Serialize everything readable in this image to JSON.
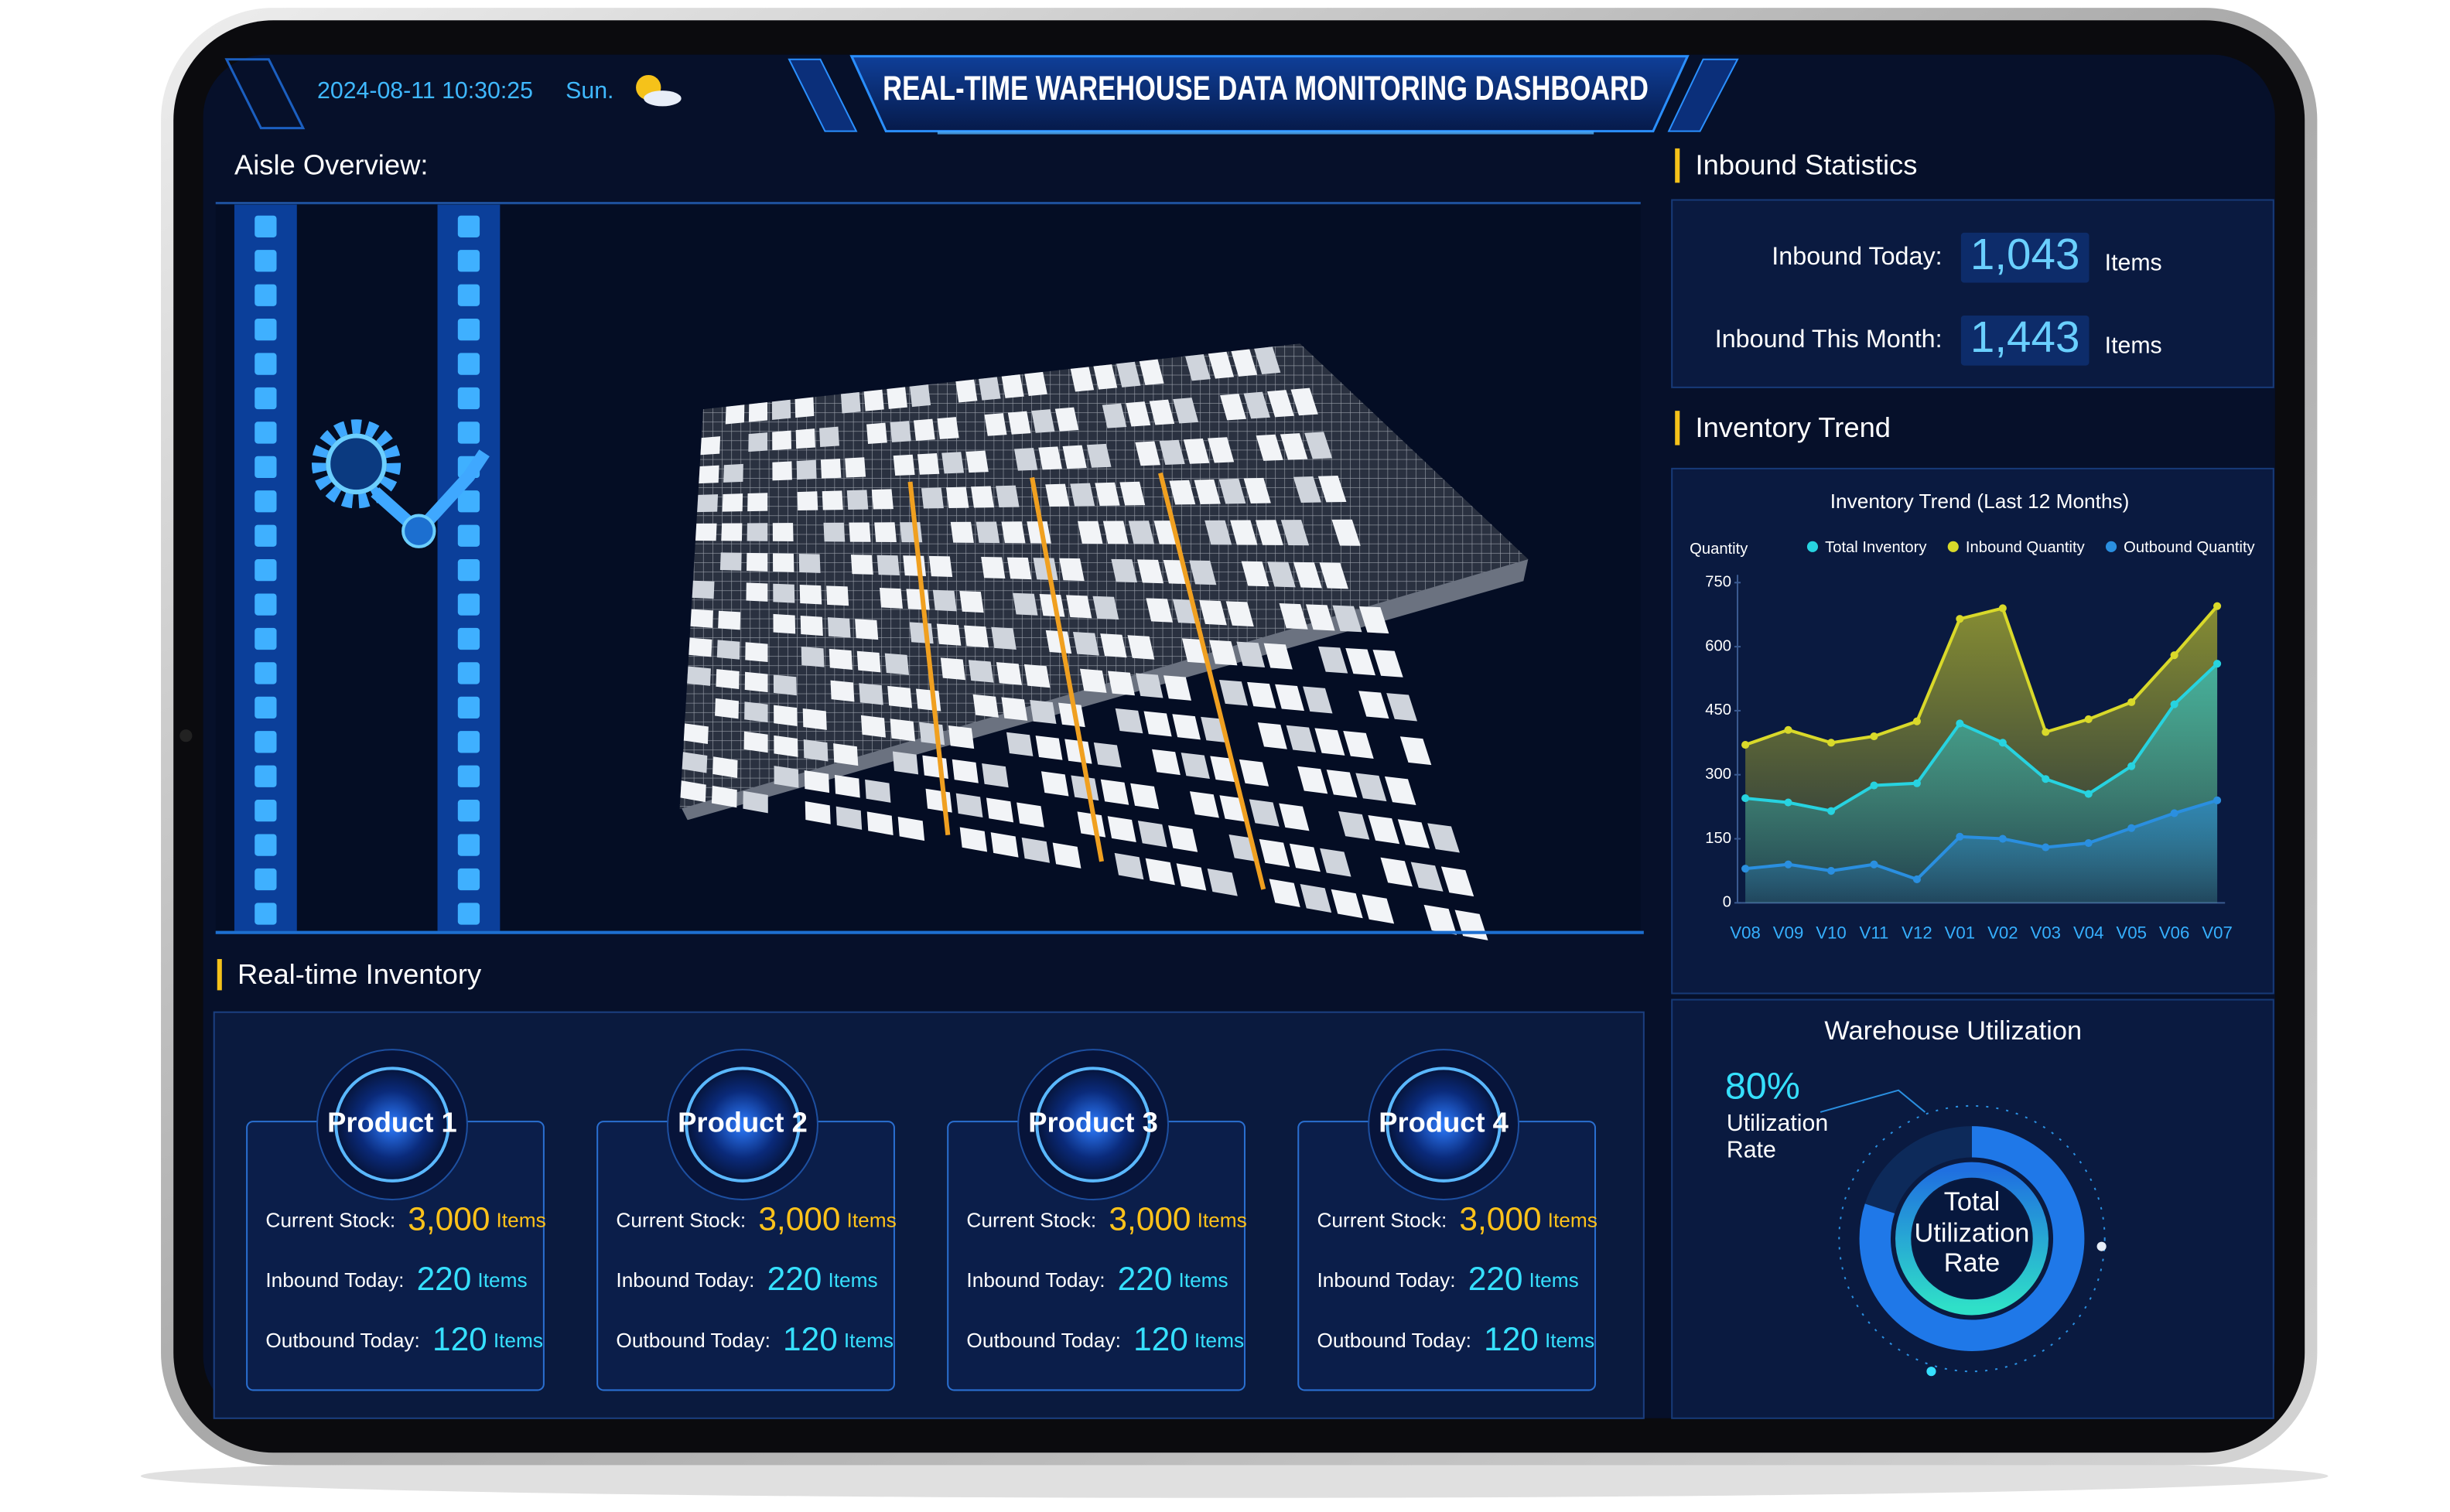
{
  "header": {
    "datetime": "2024-08-11 10:30:25",
    "weekday": "Sun.",
    "title": "REAL-TIME WAREHOUSE DATA MONITORING DASHBOARD"
  },
  "aisle": {
    "title": "Aisle Overview:"
  },
  "inbound": {
    "title": "Inbound Statistics",
    "rows": [
      {
        "label": "Inbound Today:",
        "value": "1,043",
        "unit": "Items"
      },
      {
        "label": "Inbound This Month:",
        "value": "1,443",
        "unit": "Items"
      }
    ]
  },
  "trend": {
    "title": "Inventory Trend"
  },
  "inventory": {
    "title": "Real-time Inventory",
    "products": [
      {
        "name": "Product 1",
        "rows": [
          {
            "label": "Current Stock:",
            "value": "3,000",
            "unit": "Items"
          },
          {
            "label": "Inbound Today:",
            "value": "220",
            "unit": "Items"
          },
          {
            "label": "Outbound Today:",
            "value": "120",
            "unit": "Items"
          }
        ]
      },
      {
        "name": "Product 2",
        "rows": [
          {
            "label": "Current Stock:",
            "value": "3,000",
            "unit": "Items"
          },
          {
            "label": "Inbound Today:",
            "value": "220",
            "unit": "Items"
          },
          {
            "label": "Outbound Today:",
            "value": "120",
            "unit": "Items"
          }
        ]
      },
      {
        "name": "Product 3",
        "rows": [
          {
            "label": "Current Stock:",
            "value": "3,000",
            "unit": "Items"
          },
          {
            "label": "Inbound Today:",
            "value": "220",
            "unit": "Items"
          },
          {
            "label": "Outbound Today:",
            "value": "120",
            "unit": "Items"
          }
        ]
      },
      {
        "name": "Product 4",
        "rows": [
          {
            "label": "Current Stock:",
            "value": "3,000",
            "unit": "Items"
          },
          {
            "label": "Inbound Today:",
            "value": "220",
            "unit": "Items"
          },
          {
            "label": "Outbound Today:",
            "value": "120",
            "unit": "Items"
          }
        ]
      }
    ]
  },
  "chart_data": [
    {
      "type": "area",
      "title": "Inventory Trend (Last 12 Months)",
      "y_label": "Quantity",
      "categories": [
        "V08",
        "V09",
        "V10",
        "V11",
        "V12",
        "V01",
        "V02",
        "V03",
        "V04",
        "V05",
        "V06",
        "V07"
      ],
      "series": [
        {
          "name": "Total Inventory",
          "color": "#27d3e0",
          "values": [
            245,
            235,
            215,
            275,
            280,
            420,
            375,
            290,
            255,
            320,
            465,
            560
          ]
        },
        {
          "name": "Inbound Quantity",
          "color": "#d9d92a",
          "values": [
            370,
            405,
            375,
            390,
            425,
            665,
            690,
            400,
            430,
            470,
            580,
            695
          ]
        },
        {
          "name": "Outbound Quantity",
          "color": "#2a8fe0",
          "values": [
            80,
            90,
            75,
            90,
            55,
            155,
            150,
            130,
            140,
            175,
            210,
            240
          ]
        }
      ],
      "ylim": [
        0,
        750
      ],
      "yticks": [
        0,
        150,
        300,
        450,
        600,
        750
      ],
      "grid": false
    },
    {
      "type": "gauge",
      "title": "Warehouse Utilization",
      "value": 80,
      "value_label": "80%",
      "label": "Utilization Rate",
      "center_label": "Total Utilization Rate",
      "ylim": [
        0,
        100
      ],
      "color": "#1f78e8"
    }
  ]
}
